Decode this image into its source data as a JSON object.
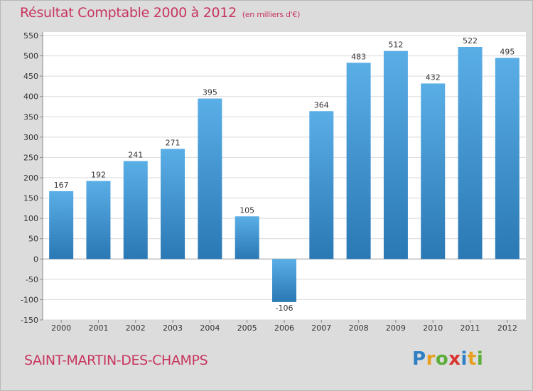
{
  "header": {
    "title": "Résultat Comptable 2000 à 2012",
    "unit": "(en milliers d'€)"
  },
  "footer": {
    "place": "SAINT-MARTIN-DES-CHAMPS",
    "logo": "Proxiti"
  },
  "colors": {
    "bar_light": "#5aaee6",
    "bar_dark": "#2a78b4",
    "title": "#c7365f",
    "plot_bg": "#ffffff",
    "frame_bg": "#dcdcdc",
    "grid": "#d9d9d9"
  },
  "chart_data": {
    "type": "bar",
    "title": "Résultat Comptable 2000 à 2012",
    "subtitle": "(en milliers d'€)",
    "xlabel": "",
    "ylabel": "",
    "categories": [
      "2000",
      "2001",
      "2002",
      "2003",
      "2004",
      "2005",
      "2006",
      "2007",
      "2008",
      "2009",
      "2010",
      "2011",
      "2012"
    ],
    "values": [
      167,
      192,
      241,
      271,
      395,
      105,
      -106,
      364,
      483,
      512,
      432,
      522,
      495
    ],
    "ylim": [
      -150,
      550
    ],
    "yticks": [
      -150,
      -100,
      -50,
      0,
      50,
      100,
      150,
      200,
      250,
      300,
      350,
      400,
      450,
      500,
      550
    ],
    "ytick_labels": [
      "-150",
      "-100",
      "-50",
      "0",
      "50",
      "100",
      "150",
      "200",
      "250",
      "300",
      "350",
      "400",
      "450",
      "500",
      "550"
    ],
    "data_labels": [
      "167",
      "192",
      "241",
      "271",
      "395",
      "105",
      "-106",
      "364",
      "483",
      "512",
      "432",
      "522",
      "495"
    ],
    "grid": true,
    "legend": "none"
  }
}
